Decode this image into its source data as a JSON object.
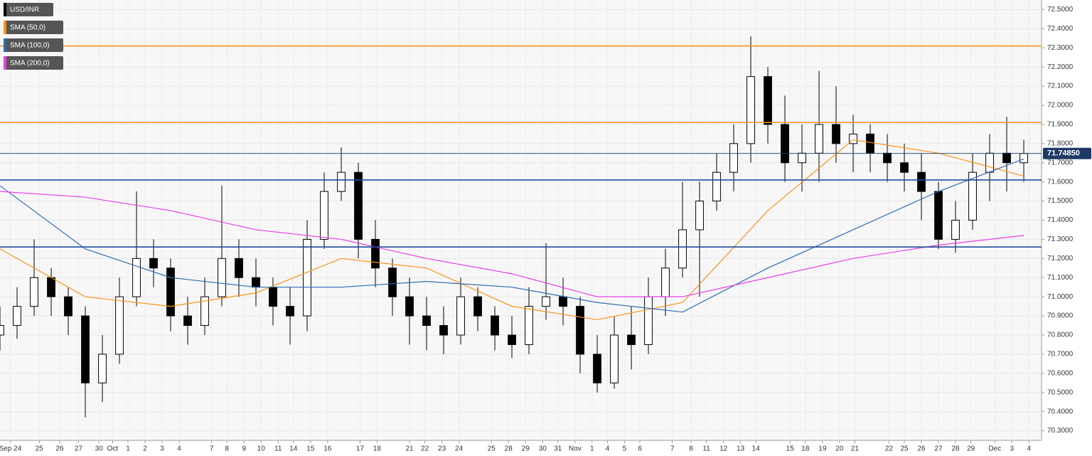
{
  "chart_data": {
    "type": "candlestick",
    "symbol": "USD/INR",
    "candle_color": "#000000",
    "xlim": [
      0,
      61.04
    ],
    "ylim": [
      70.25,
      72.55
    ],
    "grid": true,
    "x": [
      0,
      1,
      2,
      3,
      4,
      5,
      6,
      7,
      8,
      9,
      10,
      11,
      12,
      13,
      14,
      15,
      16,
      17,
      18,
      19,
      20,
      21,
      22,
      23,
      24,
      25,
      26,
      27,
      28,
      29,
      30,
      31,
      32,
      33,
      34,
      35,
      36,
      37,
      38,
      39,
      40,
      41,
      42,
      43,
      44,
      45,
      46,
      47,
      48,
      49,
      50,
      51,
      52,
      53,
      54,
      55,
      56,
      57,
      58,
      59,
      60
    ],
    "open": [
      70.8,
      70.85,
      70.95,
      71.1,
      71.0,
      70.9,
      70.55,
      70.7,
      71.0,
      71.2,
      71.15,
      70.9,
      70.85,
      71.0,
      71.2,
      71.1,
      71.05,
      70.95,
      70.9,
      71.3,
      71.55,
      71.65,
      71.3,
      71.15,
      71.0,
      70.9,
      70.85,
      70.8,
      71.0,
      70.9,
      70.8,
      70.75,
      70.95,
      71.0,
      70.95,
      70.7,
      70.55,
      70.8,
      70.75,
      71.0,
      71.15,
      71.35,
      71.5,
      71.65,
      71.8,
      72.15,
      71.9,
      71.7,
      71.75,
      71.9,
      71.8,
      71.85,
      71.75,
      71.7,
      71.65,
      71.55,
      71.3,
      71.4,
      71.65,
      71.75,
      71.7
    ],
    "high": [
      70.95,
      71.05,
      71.3,
      71.15,
      71.05,
      70.95,
      70.8,
      71.1,
      71.55,
      71.3,
      71.2,
      71.0,
      71.1,
      71.58,
      71.3,
      71.2,
      71.1,
      71.05,
      71.4,
      71.65,
      71.78,
      71.7,
      71.4,
      71.2,
      71.1,
      71.0,
      70.95,
      71.1,
      71.05,
      70.95,
      70.9,
      71.05,
      71.28,
      71.1,
      71.0,
      70.8,
      70.9,
      70.95,
      71.1,
      71.25,
      71.6,
      71.6,
      71.75,
      71.9,
      72.36,
      72.2,
      72.05,
      71.9,
      72.18,
      72.1,
      71.95,
      71.9,
      71.85,
      71.8,
      71.75,
      71.6,
      71.5,
      71.75,
      71.85,
      71.94,
      71.82
    ],
    "low": [
      70.72,
      70.78,
      70.9,
      70.9,
      70.8,
      70.37,
      70.45,
      70.65,
      70.95,
      71.05,
      70.82,
      70.75,
      70.8,
      70.95,
      71.0,
      70.95,
      70.85,
      70.75,
      70.82,
      71.25,
      71.5,
      71.2,
      71.05,
      70.9,
      70.75,
      70.72,
      70.7,
      70.75,
      70.82,
      70.72,
      70.68,
      70.7,
      70.88,
      70.85,
      70.6,
      70.5,
      70.52,
      70.62,
      70.7,
      70.9,
      71.1,
      71.0,
      71.45,
      71.55,
      71.7,
      71.8,
      71.6,
      71.55,
      71.6,
      71.7,
      71.65,
      71.65,
      71.6,
      71.55,
      71.4,
      71.25,
      71.23,
      71.35,
      71.5,
      71.55,
      71.6
    ],
    "close": [
      70.85,
      70.95,
      71.1,
      71.0,
      70.9,
      70.55,
      70.7,
      71.0,
      71.2,
      71.15,
      70.9,
      70.85,
      71.0,
      71.2,
      71.1,
      71.05,
      70.95,
      70.9,
      71.3,
      71.55,
      71.65,
      71.3,
      71.15,
      71.0,
      70.9,
      70.85,
      70.8,
      71.0,
      70.9,
      70.8,
      70.75,
      70.95,
      71.0,
      70.95,
      70.7,
      70.55,
      70.8,
      70.75,
      71.0,
      71.15,
      71.35,
      71.5,
      71.65,
      71.8,
      72.15,
      71.9,
      71.7,
      71.75,
      71.9,
      71.8,
      71.85,
      71.75,
      71.7,
      71.65,
      71.55,
      71.3,
      71.4,
      71.65,
      71.75,
      71.7,
      71.7485
    ],
    "last_price": {
      "value": 71.7485,
      "label": "71.74850"
    },
    "series": [
      {
        "name": "SMA (50,0)",
        "color": "#f7931a",
        "x": [
          0,
          5,
          10,
          15,
          20,
          25,
          30,
          35,
          40,
          45,
          50,
          55,
          60
        ],
        "values": [
          71.25,
          71.0,
          70.95,
          71.02,
          71.2,
          71.15,
          70.95,
          70.88,
          70.97,
          71.45,
          71.82,
          71.75,
          71.63
        ]
      },
      {
        "name": "SMA (100,0)",
        "color": "#2e6bb5",
        "x": [
          0,
          5,
          10,
          15,
          20,
          25,
          30,
          35,
          40,
          45,
          50,
          55,
          60
        ],
        "values": [
          71.58,
          71.25,
          71.1,
          71.05,
          71.05,
          71.08,
          71.05,
          70.97,
          70.92,
          71.15,
          71.35,
          71.55,
          71.72
        ]
      },
      {
        "name": "SMA (200,0)",
        "color": "#e83de8",
        "x": [
          0,
          5,
          10,
          15,
          20,
          25,
          30,
          35,
          40,
          45,
          50,
          55,
          60
        ],
        "values": [
          71.55,
          71.52,
          71.45,
          71.35,
          71.3,
          71.2,
          71.12,
          71.0,
          71.0,
          71.1,
          71.2,
          71.27,
          71.32
        ]
      }
    ],
    "levels": [
      {
        "value": 72.31,
        "color": "#f7931a"
      },
      {
        "value": 71.91,
        "color": "#f7931a"
      },
      {
        "value": 71.61,
        "color": "#1f4e9c"
      },
      {
        "value": 71.26,
        "color": "#1f4e9c"
      }
    ],
    "yticks": [
      {
        "value": 70.3,
        "label": "70.3000"
      },
      {
        "value": 70.4,
        "label": "70.4000"
      },
      {
        "value": 70.5,
        "label": "70.5000"
      },
      {
        "value": 70.6,
        "label": "70.6000"
      },
      {
        "value": 70.7,
        "label": "70.7000"
      },
      {
        "value": 70.8,
        "label": "70.8000"
      },
      {
        "value": 70.9,
        "label": "70.9000"
      },
      {
        "value": 71.0,
        "label": "71.0000"
      },
      {
        "value": 71.1,
        "label": "71.1000"
      },
      {
        "value": 71.2,
        "label": "71.2000"
      },
      {
        "value": 71.3,
        "label": "71.3000"
      },
      {
        "value": 71.4,
        "label": "71.4000"
      },
      {
        "value": 71.5,
        "label": "71.5000"
      },
      {
        "value": 71.6,
        "label": "71.6000"
      },
      {
        "value": 71.7,
        "label": "71.7000"
      },
      {
        "value": 71.8,
        "label": "71.8000"
      },
      {
        "value": 71.9,
        "label": "71.9000"
      },
      {
        "value": 72.0,
        "label": "72.0000"
      },
      {
        "value": 72.1,
        "label": "72.1000"
      },
      {
        "value": 72.2,
        "label": "72.2000"
      },
      {
        "value": 72.3,
        "label": "72.3000"
      },
      {
        "value": 72.4,
        "label": "72.4000"
      },
      {
        "value": 72.5,
        "label": "72.5000"
      }
    ],
    "xticks": [
      {
        "value": 0.6,
        "label": "Sep 24"
      },
      {
        "value": 2.3,
        "label": "25"
      },
      {
        "value": 3.5,
        "label": "26"
      },
      {
        "value": 4.6,
        "label": "27"
      },
      {
        "value": 5.8,
        "label": "30"
      },
      {
        "value": 6.6,
        "label": "Oct"
      },
      {
        "value": 7.5,
        "label": "1"
      },
      {
        "value": 8.5,
        "label": "2"
      },
      {
        "value": 9.5,
        "label": "3"
      },
      {
        "value": 10.5,
        "label": "4"
      },
      {
        "value": 12.4,
        "label": "7"
      },
      {
        "value": 13.3,
        "label": "8"
      },
      {
        "value": 14.3,
        "label": "9"
      },
      {
        "value": 15.3,
        "label": "10"
      },
      {
        "value": 16.3,
        "label": "11"
      },
      {
        "value": 17.2,
        "label": "14"
      },
      {
        "value": 18.2,
        "label": "15"
      },
      {
        "value": 19.2,
        "label": "16"
      },
      {
        "value": 21.1,
        "label": "17"
      },
      {
        "value": 22.1,
        "label": "18"
      },
      {
        "value": 24,
        "label": "21"
      },
      {
        "value": 24.9,
        "label": "22"
      },
      {
        "value": 25.9,
        "label": "23"
      },
      {
        "value": 26.9,
        "label": "24"
      },
      {
        "value": 28.8,
        "label": "25"
      },
      {
        "value": 29.8,
        "label": "28"
      },
      {
        "value": 30.8,
        "label": "29"
      },
      {
        "value": 31.8,
        "label": "30"
      },
      {
        "value": 32.7,
        "label": "31"
      },
      {
        "value": 33.7,
        "label": "Nov"
      },
      {
        "value": 34.7,
        "label": "1"
      },
      {
        "value": 35.6,
        "label": "4"
      },
      {
        "value": 36.6,
        "label": "5"
      },
      {
        "value": 37.5,
        "label": "6"
      },
      {
        "value": 39.4,
        "label": "7"
      },
      {
        "value": 40.5,
        "label": "8"
      },
      {
        "value": 41.4,
        "label": "11"
      },
      {
        "value": 42.4,
        "label": "12"
      },
      {
        "value": 43.4,
        "label": "13"
      },
      {
        "value": 44.3,
        "label": "14"
      },
      {
        "value": 46.3,
        "label": "15"
      },
      {
        "value": 47.2,
        "label": "18"
      },
      {
        "value": 48.2,
        "label": "19"
      },
      {
        "value": 49.2,
        "label": "20"
      },
      {
        "value": 50.1,
        "label": "21"
      },
      {
        "value": 52.1,
        "label": "22"
      },
      {
        "value": 53,
        "label": "25"
      },
      {
        "value": 54,
        "label": "26"
      },
      {
        "value": 55,
        "label": "27"
      },
      {
        "value": 56,
        "label": "28"
      },
      {
        "value": 56.9,
        "label": "29"
      },
      {
        "value": 58.3,
        "label": "Dec"
      },
      {
        "value": 59.3,
        "label": "3"
      },
      {
        "value": 60.3,
        "label": "4"
      }
    ]
  }
}
